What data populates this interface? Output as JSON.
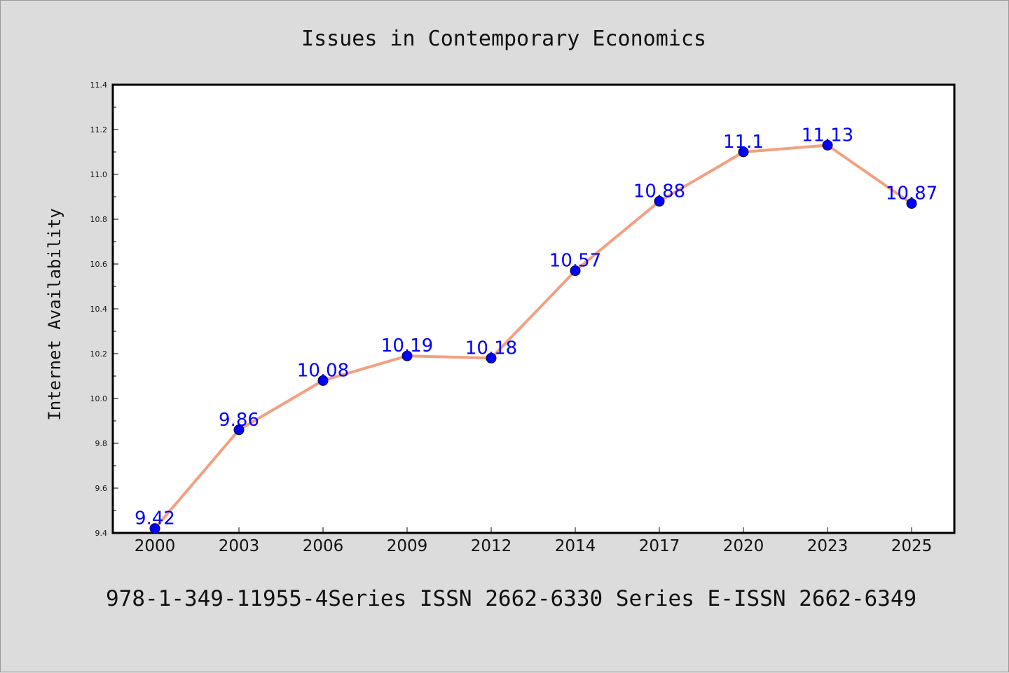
{
  "chart_data": {
    "type": "line",
    "title": "Issues in Contemporary Economics",
    "xlabel": "",
    "ylabel": "Internet Availability",
    "categories": [
      "2000",
      "2003",
      "2006",
      "2009",
      "2012",
      "2014",
      "2017",
      "2020",
      "2023",
      "2025"
    ],
    "series": [
      {
        "values": [
          9.42,
          9.86,
          10.08,
          10.19,
          10.18,
          10.57,
          10.88,
          11.1,
          11.13,
          10.87
        ],
        "data_labels": [
          "9.42",
          "9.86",
          "10.08",
          "10.19",
          "10.18",
          "10.57",
          "10.88",
          "11.1",
          "11.13",
          "10.87"
        ]
      }
    ],
    "ylim": [
      9.4,
      11.4
    ],
    "yticks": [
      9.4,
      9.6,
      9.8,
      10.0,
      10.2,
      10.4,
      10.6,
      10.8,
      11.0,
      11.2,
      11.4
    ],
    "ytick_labels": [
      "9.4",
      "9.6",
      "9.8",
      "10.0",
      "10.2",
      "10.4",
      "10.6",
      "10.8",
      "11.0",
      "11.2",
      "11.4"
    ],
    "grid": false,
    "legend": "none"
  },
  "footer": {
    "text": "978-1-349-11955-4Series ISSN 2662-6330 Series E-ISSN 2662-6349"
  },
  "colors": {
    "page_background": "#dcdcdc",
    "plot_background": "#ffffff",
    "line": "#f4a080",
    "marker": "#0000ff",
    "data_label": "#0000ff",
    "text": "#111111"
  }
}
